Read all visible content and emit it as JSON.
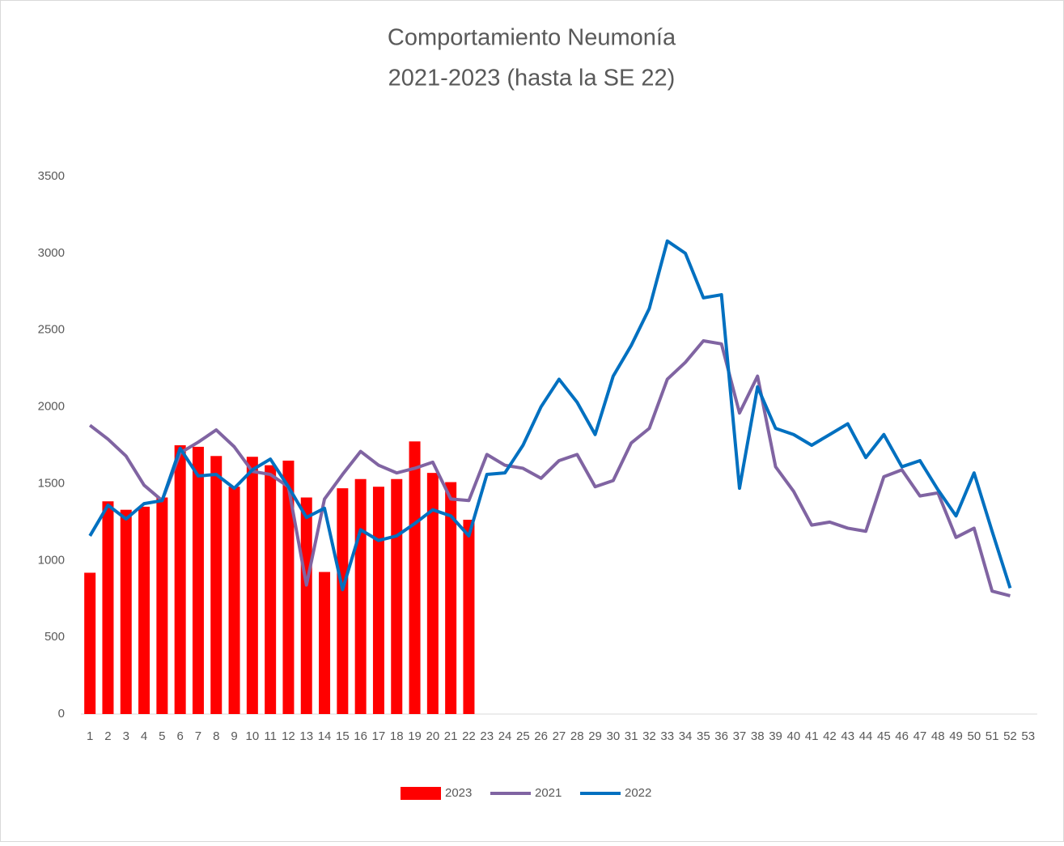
{
  "chart_data": {
    "type": "bar-line",
    "title": [
      "Comportamiento Neumonía",
      "2021-2023 (hasta la SE 22)"
    ],
    "categories": [
      1,
      2,
      3,
      4,
      5,
      6,
      7,
      8,
      9,
      10,
      11,
      12,
      13,
      14,
      15,
      16,
      17,
      18,
      19,
      20,
      21,
      22,
      23,
      24,
      25,
      26,
      27,
      28,
      29,
      30,
      31,
      32,
      33,
      34,
      35,
      36,
      37,
      38,
      39,
      40,
      41,
      42,
      43,
      44,
      45,
      46,
      47,
      48,
      49,
      50,
      51,
      52,
      53
    ],
    "series": [
      {
        "name": "2023",
        "type": "bar",
        "color": "#ff0000",
        "values": [
          920,
          1385,
          1330,
          1350,
          1410,
          1750,
          1740,
          1680,
          1480,
          1675,
          1620,
          1650,
          1410,
          925,
          1470,
          1530,
          1480,
          1530,
          1775,
          1570,
          1510,
          1265,
          null,
          null,
          null,
          null,
          null,
          null,
          null,
          null,
          null,
          null,
          null,
          null,
          null,
          null,
          null,
          null,
          null,
          null,
          null,
          null,
          null,
          null,
          null,
          null,
          null,
          null,
          null,
          null,
          null,
          null,
          null
        ]
      },
      {
        "name": "2021",
        "type": "line",
        "color": "#8064a2",
        "values": [
          1880,
          1790,
          1680,
          1490,
          1390,
          1700,
          1770,
          1850,
          1740,
          1580,
          1560,
          1480,
          840,
          1400,
          1560,
          1710,
          1620,
          1570,
          1600,
          1640,
          1400,
          1390,
          1690,
          1620,
          1600,
          1535,
          1650,
          1690,
          1480,
          1520,
          1765,
          1860,
          2180,
          2290,
          2430,
          2410,
          1960,
          2200,
          1610,
          1450,
          1230,
          1250,
          1210,
          1190,
          1545,
          1590,
          1420,
          1440,
          1150,
          1210,
          800,
          770,
          null
        ]
      },
      {
        "name": "2022",
        "type": "line",
        "color": "#0070c0",
        "values": [
          1160,
          1360,
          1270,
          1370,
          1390,
          1730,
          1550,
          1560,
          1470,
          1590,
          1660,
          1480,
          1280,
          1340,
          810,
          1200,
          1130,
          1160,
          1240,
          1330,
          1290,
          1160,
          1560,
          1570,
          1750,
          2000,
          2180,
          2030,
          1820,
          2200,
          2400,
          2640,
          3080,
          3000,
          2710,
          2730,
          1470,
          2130,
          1860,
          1820,
          1750,
          1820,
          1890,
          1670,
          1820,
          1610,
          1650,
          1460,
          1290,
          1570,
          1190,
          820,
          null
        ]
      }
    ],
    "ylim": [
      0,
      3500
    ],
    "yticks": [
      0,
      500,
      1000,
      1500,
      2000,
      2500,
      3000,
      3500
    ],
    "grid": false,
    "legend": "bottom"
  }
}
